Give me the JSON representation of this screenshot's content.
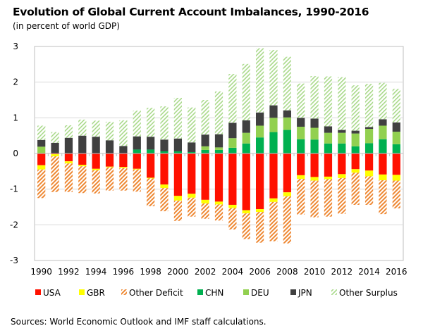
{
  "header": {
    "title": "Evolution of Global Current Account Imbalances, 1990-2016",
    "subtitle": "(in percent of world GDP)"
  },
  "footer": {
    "source": "Sources: World Economic Outlook and IMF staff calculations."
  },
  "colors": {
    "USA": "#ff1100",
    "GBR": "#ffff00",
    "Other Deficit": "#ee8833",
    "CHN": "#00b050",
    "DEU": "#92d050",
    "JPN": "#404040",
    "Other Surplus": "#a9d98a",
    "grid": "#d9d9d9",
    "frame": "#bfbfbf"
  },
  "chart_data": {
    "type": "bar",
    "stacked": true,
    "title": "Evolution of Global Current Account Imbalances, 1990-2016",
    "subtitle": "(in percent of world GDP)",
    "xlabel": "",
    "ylabel": "",
    "ylim": [
      -3,
      3
    ],
    "yticks": [
      "3",
      "2",
      "1",
      "0",
      "-1",
      "-2",
      "-3"
    ],
    "ytick_values": [
      3,
      2,
      1,
      0,
      -1,
      -2,
      -3
    ],
    "x": [
      1990,
      1991,
      1992,
      1993,
      1994,
      1995,
      1996,
      1997,
      1998,
      1999,
      2000,
      2001,
      2002,
      2003,
      2004,
      2005,
      2006,
      2007,
      2008,
      2009,
      2010,
      2011,
      2012,
      2013,
      2014,
      2015,
      2016
    ],
    "xtick_labels": [
      "1990",
      "1992",
      "1994",
      "1996",
      "1998",
      "2000",
      "2002",
      "2004",
      "2006",
      "2008",
      "2010",
      "2012",
      "2014",
      "2016"
    ],
    "grid": true,
    "legend_position": "bottom",
    "legend": [
      "USA",
      "GBR",
      "Other Deficit",
      "CHN",
      "DEU",
      "JPN",
      "Other Surplus"
    ],
    "series": [
      {
        "name": "USA",
        "side": "deficit",
        "pattern": "solid",
        "values": [
          -0.33,
          -0.02,
          -0.22,
          -0.32,
          -0.43,
          -0.37,
          -0.38,
          -0.43,
          -0.68,
          -0.87,
          -1.19,
          -1.13,
          -1.3,
          -1.35,
          -1.44,
          -1.59,
          -1.56,
          -1.26,
          -1.09,
          -0.61,
          -0.66,
          -0.65,
          -0.58,
          -0.44,
          -0.48,
          -0.59,
          -0.6
        ]
      },
      {
        "name": "GBR",
        "side": "deficit",
        "pattern": "solid",
        "values": [
          -0.12,
          -0.06,
          -0.06,
          -0.04,
          -0.04,
          -0.02,
          -0.03,
          -0.02,
          -0.02,
          -0.1,
          -0.13,
          -0.11,
          -0.1,
          -0.08,
          -0.09,
          -0.09,
          -0.08,
          -0.1,
          -0.11,
          -0.1,
          -0.1,
          -0.07,
          -0.11,
          -0.1,
          -0.16,
          -0.16,
          -0.16
        ]
      },
      {
        "name": "Other Deficit",
        "side": "deficit",
        "pattern": "hatched",
        "values": [
          -0.8,
          -1.0,
          -0.8,
          -0.75,
          -0.65,
          -0.65,
          -0.63,
          -0.62,
          -0.78,
          -0.65,
          -0.57,
          -0.53,
          -0.43,
          -0.45,
          -0.6,
          -0.72,
          -0.86,
          -1.1,
          -1.32,
          -1.0,
          -1.03,
          -1.05,
          -1.0,
          -0.9,
          -0.8,
          -0.95,
          -0.78
        ]
      },
      {
        "name": "CHN",
        "side": "surplus",
        "pattern": "solid",
        "values": [
          0.0,
          0.0,
          0.0,
          0.0,
          0.0,
          0.0,
          0.0,
          0.11,
          0.11,
          0.06,
          0.06,
          0.04,
          0.1,
          0.1,
          0.16,
          0.28,
          0.45,
          0.6,
          0.66,
          0.4,
          0.39,
          0.28,
          0.28,
          0.2,
          0.29,
          0.4,
          0.26
        ]
      },
      {
        "name": "DEU",
        "side": "surplus",
        "pattern": "solid",
        "values": [
          0.19,
          0.0,
          0.0,
          0.0,
          0.0,
          0.0,
          0.0,
          0.0,
          0.0,
          0.0,
          0.0,
          0.0,
          0.1,
          0.07,
          0.27,
          0.3,
          0.33,
          0.4,
          0.35,
          0.35,
          0.33,
          0.3,
          0.3,
          0.36,
          0.4,
          0.38,
          0.35
        ]
      },
      {
        "name": "JPN",
        "side": "surplus",
        "pattern": "solid",
        "values": [
          0.19,
          0.3,
          0.44,
          0.5,
          0.47,
          0.37,
          0.21,
          0.37,
          0.36,
          0.33,
          0.36,
          0.27,
          0.33,
          0.37,
          0.43,
          0.35,
          0.37,
          0.35,
          0.2,
          0.25,
          0.26,
          0.18,
          0.08,
          0.08,
          0.05,
          0.18,
          0.26
        ]
      },
      {
        "name": "Other Surplus",
        "side": "surplus",
        "pattern": "hatched",
        "values": [
          0.4,
          0.3,
          0.35,
          0.45,
          0.45,
          0.52,
          0.72,
          0.72,
          0.81,
          0.93,
          1.14,
          0.98,
          0.97,
          1.2,
          1.37,
          1.58,
          1.8,
          1.55,
          1.5,
          0.96,
          1.19,
          1.4,
          1.48,
          1.27,
          1.21,
          1.02,
          0.94
        ]
      }
    ]
  }
}
